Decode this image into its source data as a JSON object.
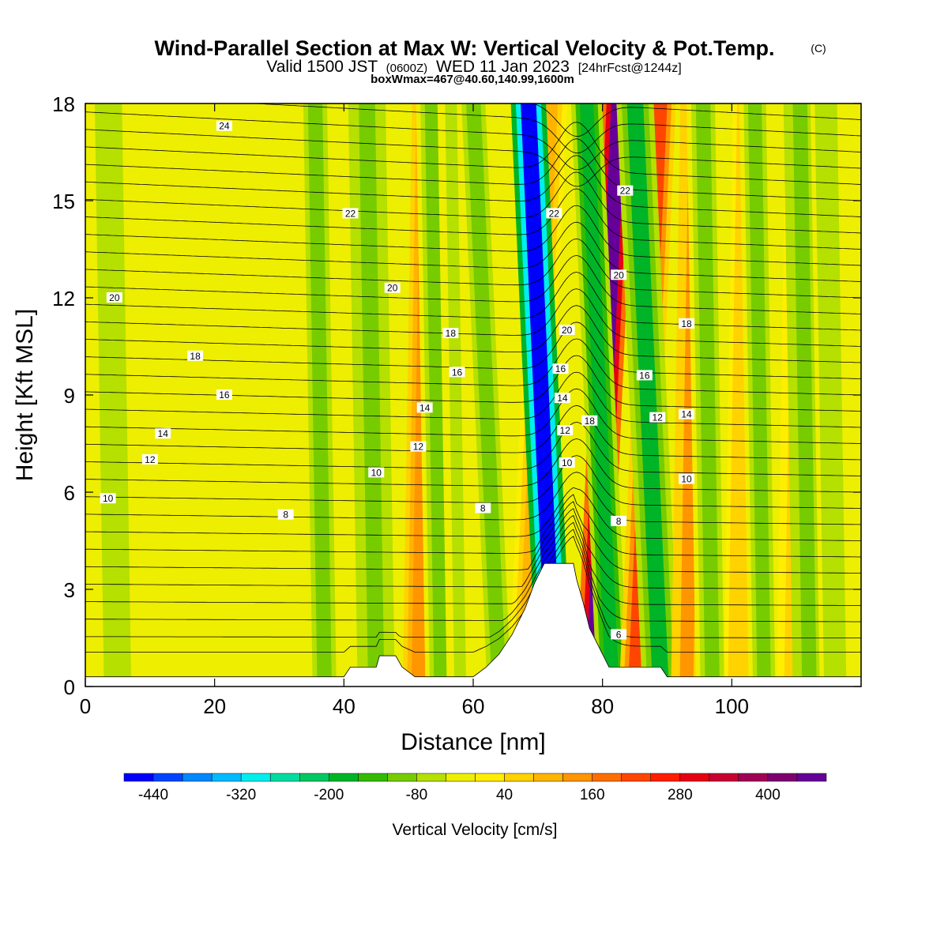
{
  "chart_data": {
    "type": "heatmap",
    "title": "Wind-Parallel Section at Max W: Vertical Velocity & Pot.Temp.",
    "title_mark": "(C)",
    "subtitle_parts": [
      "Valid 1500 JST",
      "(0600Z)",
      "WED 11 Jan 2023",
      "[24hrFcst@1244z]"
    ],
    "subtitle2": "boxWmax=467@40.60,140.99,1600m",
    "xlabel": "Distance [nm]",
    "ylabel": "Height [Kft MSL]",
    "xlim": [
      0,
      120
    ],
    "ylim": [
      0,
      18
    ],
    "x_ticks": [
      "0",
      "20",
      "40",
      "60",
      "80",
      "100"
    ],
    "x_tick_values": [
      0,
      20,
      40,
      60,
      80,
      100
    ],
    "y_ticks": [
      "0",
      "3",
      "6",
      "9",
      "12",
      "15",
      "18"
    ],
    "y_tick_values": [
      0,
      3,
      6,
      9,
      12,
      15,
      18
    ],
    "colorbar": {
      "title": "Vertical Velocity [cm/s]",
      "min": -480,
      "max": 480,
      "step": 40,
      "tick_labels": [
        "-440",
        "-320",
        "-200",
        "-80",
        "40",
        "160",
        "280",
        "400"
      ],
      "tick_values": [
        -440,
        -320,
        -200,
        -80,
        40,
        160,
        280,
        400
      ],
      "colors": [
        "#0000ff",
        "#0044ff",
        "#0088ff",
        "#00bbff",
        "#00eeee",
        "#00dda0",
        "#00c864",
        "#00b428",
        "#33bb00",
        "#77cc00",
        "#b5e000",
        "#eeee00",
        "#ffee00",
        "#ffd200",
        "#ffb400",
        "#ff9600",
        "#ff6e00",
        "#ff4600",
        "#ff1e00",
        "#e60014",
        "#c80032",
        "#a00055",
        "#800070",
        "#660099"
      ]
    },
    "vertical_velocity_bands": [
      {
        "x": 5,
        "w": 3,
        "v": -60
      },
      {
        "x": 25,
        "w": 2,
        "v": -20
      },
      {
        "x": 37,
        "w": 1.6,
        "v": -100
      },
      {
        "x": 45,
        "w": 1.8,
        "v": -120
      },
      {
        "x": 51.5,
        "w": 1.5,
        "v": 150
      },
      {
        "x": 55,
        "w": 1.5,
        "v": -110
      },
      {
        "x": 58,
        "w": 1.3,
        "v": -60
      },
      {
        "x": 64,
        "w": 1.6,
        "v": -110
      },
      {
        "x": 68,
        "w": 1.6,
        "v": 110
      },
      {
        "x": 72.5,
        "w": 1.7,
        "v": -480
      },
      {
        "x": 78.5,
        "w": 1.6,
        "v": 460
      },
      {
        "x": 81.5,
        "w": 1.5,
        "v": -200
      },
      {
        "x": 85,
        "w": 1.5,
        "v": 200
      },
      {
        "x": 89,
        "w": 1.8,
        "v": -180
      },
      {
        "x": 93,
        "w": 1.5,
        "v": 120
      },
      {
        "x": 97,
        "w": 1.6,
        "v": -110
      },
      {
        "x": 101,
        "w": 1.4,
        "v": 70
      },
      {
        "x": 105,
        "w": 1.5,
        "v": -100
      },
      {
        "x": 109,
        "w": 1.3,
        "v": 60
      },
      {
        "x": 112,
        "w": 1.6,
        "v": -120
      },
      {
        "x": 116,
        "w": 1.5,
        "v": -80
      }
    ],
    "terrain": [
      [
        0,
        0.3
      ],
      [
        40,
        0.3
      ],
      [
        41,
        0.6
      ],
      [
        45,
        0.6
      ],
      [
        45.5,
        0.95
      ],
      [
        48,
        0.95
      ],
      [
        49,
        0.6
      ],
      [
        51,
        0.3
      ],
      [
        60,
        0.3
      ],
      [
        62,
        0.6
      ],
      [
        64,
        1.0
      ],
      [
        66,
        1.6
      ],
      [
        68,
        2.4
      ],
      [
        69.5,
        3.2
      ],
      [
        71,
        3.8
      ],
      [
        75.5,
        3.8
      ],
      [
        76,
        3.3
      ],
      [
        77,
        2.6
      ],
      [
        78,
        1.8
      ],
      [
        79.5,
        1.2
      ],
      [
        81,
        0.6
      ],
      [
        89,
        0.6
      ],
      [
        90,
        0.3
      ],
      [
        120,
        0.3
      ]
    ],
    "isentrope_labels": [
      {
        "x": 21.5,
        "y": 17.3,
        "text": "24"
      },
      {
        "x": 41,
        "y": 14.6,
        "text": "22"
      },
      {
        "x": 83.5,
        "y": 15.3,
        "text": "22"
      },
      {
        "x": 72.5,
        "y": 14.6,
        "text": "22"
      },
      {
        "x": 4.5,
        "y": 12.0,
        "text": "20"
      },
      {
        "x": 47.5,
        "y": 12.3,
        "text": "20"
      },
      {
        "x": 82.5,
        "y": 12.7,
        "text": "20"
      },
      {
        "x": 74.5,
        "y": 11.0,
        "text": "20"
      },
      {
        "x": 56.5,
        "y": 10.9,
        "text": "18"
      },
      {
        "x": 93,
        "y": 11.2,
        "text": "18"
      },
      {
        "x": 17,
        "y": 10.2,
        "text": "18"
      },
      {
        "x": 57.5,
        "y": 9.7,
        "text": "16"
      },
      {
        "x": 21.5,
        "y": 9.0,
        "text": "16"
      },
      {
        "x": 73.5,
        "y": 9.8,
        "text": "16"
      },
      {
        "x": 86.5,
        "y": 9.6,
        "text": "16"
      },
      {
        "x": 52.5,
        "y": 8.6,
        "text": "14"
      },
      {
        "x": 12,
        "y": 7.8,
        "text": "14"
      },
      {
        "x": 73.8,
        "y": 8.9,
        "text": "14"
      },
      {
        "x": 93,
        "y": 8.4,
        "text": "14"
      },
      {
        "x": 78,
        "y": 8.2,
        "text": "18"
      },
      {
        "x": 74.2,
        "y": 7.9,
        "text": "12"
      },
      {
        "x": 88.5,
        "y": 8.3,
        "text": "12"
      },
      {
        "x": 51.5,
        "y": 7.4,
        "text": "12"
      },
      {
        "x": 10,
        "y": 7.0,
        "text": "12"
      },
      {
        "x": 74.5,
        "y": 6.9,
        "text": "10"
      },
      {
        "x": 45,
        "y": 6.6,
        "text": "10"
      },
      {
        "x": 93,
        "y": 6.4,
        "text": "10"
      },
      {
        "x": 3.5,
        "y": 5.8,
        "text": "10"
      },
      {
        "x": 31,
        "y": 5.3,
        "text": "8"
      },
      {
        "x": 61.5,
        "y": 5.5,
        "text": "8"
      },
      {
        "x": 82.5,
        "y": 5.1,
        "text": "8"
      },
      {
        "x": 82.5,
        "y": 1.6,
        "text": "6"
      }
    ]
  }
}
